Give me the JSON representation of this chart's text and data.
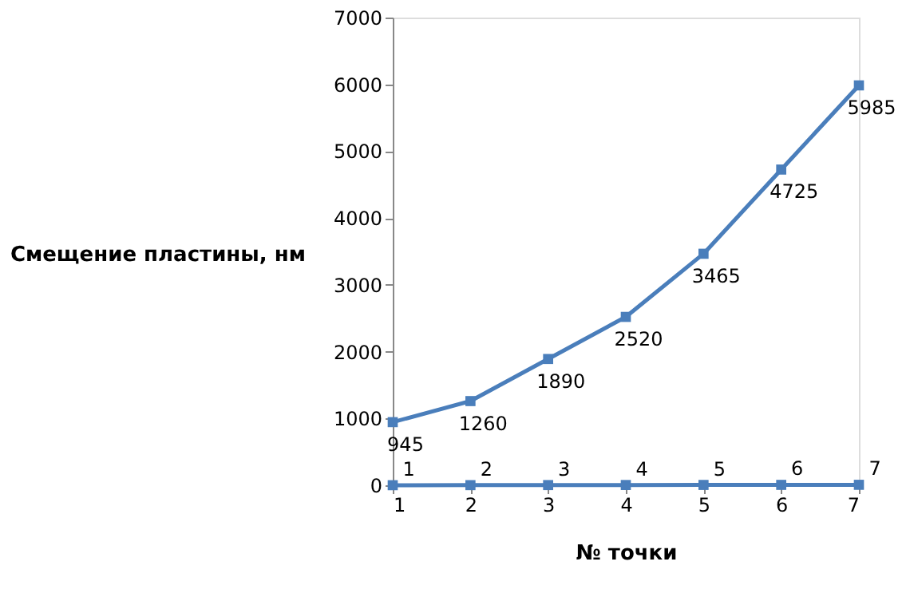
{
  "chart_data": {
    "type": "line",
    "xlabel": "№ точки",
    "ylabel": "Смещение пластины, нм",
    "x": [
      1,
      2,
      3,
      4,
      5,
      6,
      7
    ],
    "series": [
      {
        "color": "#4a7ebb",
        "values": [
          1,
          2,
          3,
          4,
          5,
          6,
          7
        ]
      },
      {
        "color": "#4a7ebb",
        "values": [
          945,
          1260,
          1890,
          2520,
          3465,
          4725,
          5985
        ]
      }
    ],
    "xlim": [
      1,
      7
    ],
    "xticks": [
      1,
      2,
      3,
      4,
      5,
      6,
      7
    ],
    "ylim": [
      0,
      7000
    ],
    "yticks": [
      0,
      1000,
      2000,
      3000,
      4000,
      5000,
      6000,
      7000
    ],
    "marker": "square",
    "line_style": "solid",
    "data_labels": true,
    "grid": false
  }
}
